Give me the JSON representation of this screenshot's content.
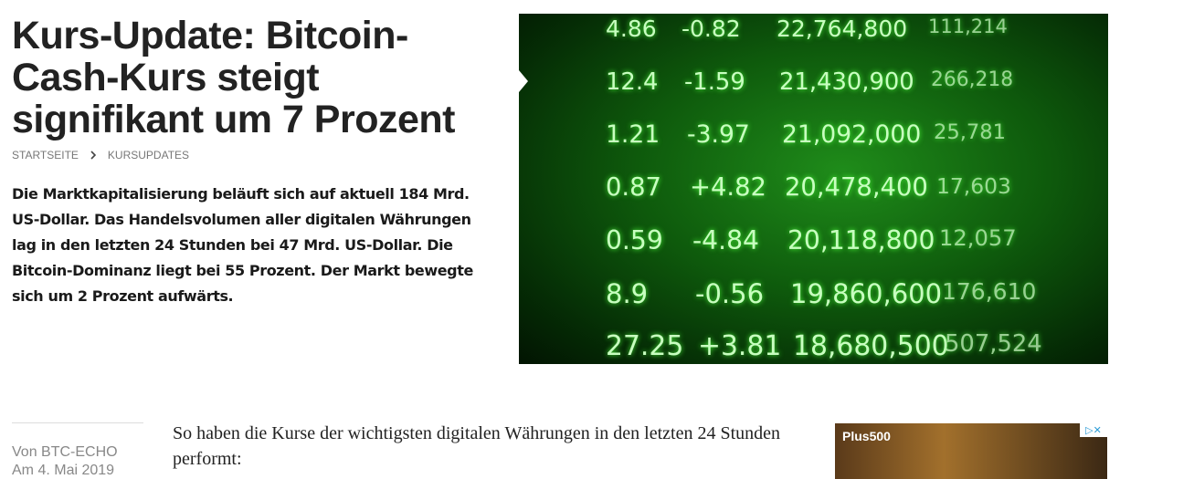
{
  "article": {
    "title": "Kurs-Update: Bitcoin-Cash-Kurs steigt signifikant um 7 Prozent",
    "breadcrumbs": [
      "STARTSEITE",
      "KURSUPDATES"
    ],
    "lead": "Die Marktkapitalisierung beläuft sich auf aktuell 184 Mrd. US-Dollar. Das Handelsvolumen aller digitalen Währungen lag in den letzten 24 Stunden bei 47 Mrd. US-Dollar. Die Bitcoin-Dominanz liegt bei 55 Prozent. Der Markt bewegte sich um 2 Prozent aufwärts.",
    "image_ticker": [
      [
        "4.86",
        "-0.82",
        "22,764,800",
        "111,214"
      ],
      [
        "12.4",
        "-1.59",
        "21,430,900",
        "266,218"
      ],
      [
        "1.21",
        "-3.97",
        "21,092,000",
        "25,781"
      ],
      [
        "0.87",
        "+4.82",
        "20,478,400",
        "17,603"
      ],
      [
        "0.59",
        "-4.84",
        "20,118,800",
        "12,057"
      ],
      [
        "8.9",
        "-0.56",
        "19,860,600",
        "176,610"
      ],
      [
        "27.25",
        "+3.81",
        "18,680,500",
        "507,524"
      ]
    ],
    "author": "Von BTC-ECHO",
    "date": "Am 4. Mai 2019",
    "body": "So haben die Kurse der wichtigsten digitalen Währungen in den letzten 24 Stunden performt:",
    "ad_brand": "Plus500"
  }
}
